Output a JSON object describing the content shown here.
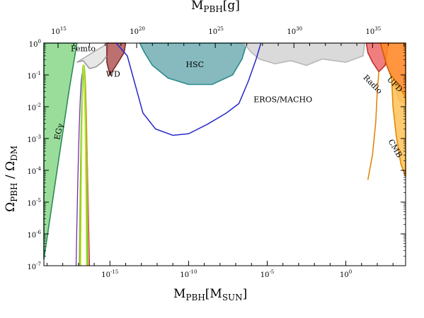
{
  "chart_data": {
    "type": "area",
    "x_top_label": {
      "main": "M",
      "sub": "PBH",
      "tail": "[g]"
    },
    "x_bottom_label": {
      "main": "M",
      "sub": "PBH",
      "tail": "[M",
      "sub2": "SUN",
      "tail2": "]"
    },
    "y_label": {
      "main": "Ω",
      "sub": "PBH",
      "mid": " / Ω",
      "sub2": "DM"
    },
    "x_bottom_range_log10": [
      -19.2,
      3.8
    ],
    "x_top_range_log10": [
      14.1,
      37.1
    ],
    "y_range_log10": [
      -7,
      0
    ],
    "x_bottom_ticks": [
      {
        "exp": -15,
        "label_base": "10",
        "label_exp": "-15"
      },
      {
        "exp": -10,
        "label_base": "10",
        "label_exp": "-10"
      },
      {
        "exp": -5,
        "label_base": "10",
        "label_exp": "-5"
      },
      {
        "exp": 0,
        "label_base": "10",
        "label_exp": "0"
      }
    ],
    "x_top_ticks": [
      {
        "exp": 15,
        "label_base": "10",
        "label_exp": "15"
      },
      {
        "exp": 20,
        "label_base": "10",
        "label_exp": "20"
      },
      {
        "exp": 25,
        "label_base": "10",
        "label_exp": "25"
      },
      {
        "exp": 30,
        "label_base": "10",
        "label_exp": "30"
      },
      {
        "exp": 35,
        "label_base": "10",
        "label_exp": "35"
      }
    ],
    "y_ticks": [
      {
        "exp": 0,
        "label_base": "10",
        "label_exp": "0"
      },
      {
        "exp": -1,
        "label_base": "10",
        "label_exp": "-1"
      },
      {
        "exp": -2,
        "label_base": "10",
        "label_exp": "-2"
      },
      {
        "exp": -3,
        "label_base": "10",
        "label_exp": "-3"
      },
      {
        "exp": -4,
        "label_base": "10",
        "label_exp": "-4"
      },
      {
        "exp": -5,
        "label_base": "10",
        "label_exp": "-5"
      },
      {
        "exp": -6,
        "label_base": "10",
        "label_exp": "-6"
      },
      {
        "exp": -7,
        "label_base": "10",
        "label_exp": "-7"
      }
    ],
    "regions": [
      {
        "name": "EGγ",
        "fill": "#8fd98f",
        "edge": "#2e8b57",
        "points": [
          [
            -19.2,
            -6.8
          ],
          [
            -19.2,
            0
          ],
          [
            -17.1,
            0
          ],
          [
            -17.6,
            -1.5
          ],
          [
            -18.3,
            -3.8
          ]
        ]
      },
      {
        "name": "Femto",
        "fill": "#e4e4e4",
        "edge": "#b0b0b0",
        "points": [
          [
            -17.1,
            -0.6
          ],
          [
            -16.7,
            -0.55
          ],
          [
            -16.3,
            -0.8
          ],
          [
            -15.9,
            -0.75
          ],
          [
            -15.5,
            -0.6
          ],
          [
            -15.2,
            -0.4
          ],
          [
            -15.1,
            0
          ]
        ]
      },
      {
        "name": "WD",
        "fill": "#b56060",
        "edge": "#7a2a2a",
        "points": [
          [
            -15.2,
            0
          ],
          [
            -14.0,
            0
          ],
          [
            -14.1,
            -0.3
          ],
          [
            -14.6,
            -0.7
          ],
          [
            -15.0,
            -1.0
          ],
          [
            -15.2,
            -0.6
          ]
        ]
      },
      {
        "name": "HSC",
        "fill": "#79b3b8",
        "edge": "#2a8a8a",
        "points": [
          [
            -13.1,
            0
          ],
          [
            -6.3,
            0
          ],
          [
            -6.6,
            -0.5
          ],
          [
            -7.2,
            -1.0
          ],
          [
            -8.5,
            -1.3
          ],
          [
            -10.0,
            -1.3
          ],
          [
            -11.3,
            -1.1
          ],
          [
            -12.3,
            -0.7
          ],
          [
            -12.8,
            -0.3
          ]
        ]
      },
      {
        "name": "EROS/MACHO",
        "fill": "#d6d6d6",
        "edge": "#b8b8b8",
        "points": [
          [
            -6.5,
            0
          ],
          [
            1.2,
            0
          ],
          [
            1.1,
            -0.4
          ],
          [
            0.0,
            -0.6
          ],
          [
            -1.5,
            -0.5
          ],
          [
            -2.5,
            -0.7
          ],
          [
            -3.5,
            -0.55
          ],
          [
            -4.5,
            -0.65
          ],
          [
            -5.5,
            -0.5
          ],
          [
            -6.0,
            -0.3
          ]
        ]
      },
      {
        "name": "Radio",
        "fill": "#f07070",
        "edge": "#c03030",
        "points": [
          [
            1.3,
            0
          ],
          [
            2.7,
            0
          ],
          [
            2.5,
            -0.7
          ],
          [
            2.1,
            -0.9
          ],
          [
            1.7,
            -0.6
          ],
          [
            1.4,
            -0.3
          ]
        ]
      },
      {
        "name": "UFD",
        "fill": "#ff8a2a",
        "edge": "#d05a00",
        "points": [
          [
            2.2,
            0
          ],
          [
            3.8,
            0
          ],
          [
            3.8,
            -1.9
          ],
          [
            3.4,
            -1.8
          ],
          [
            3.0,
            -1.2
          ],
          [
            2.6,
            -0.7
          ]
        ]
      },
      {
        "name": "CMB",
        "fill": "#ffc460",
        "edge": "#e08a00",
        "points": [
          [
            2.9,
            -1.0
          ],
          [
            3.8,
            -1.7
          ],
          [
            3.8,
            -4.2
          ],
          [
            3.5,
            -3.8
          ],
          [
            3.2,
            -2.9
          ],
          [
            3.0,
            -2.0
          ]
        ]
      }
    ],
    "curves": [
      {
        "name": "blue-constraint",
        "color": "#2828c8",
        "points": [
          [
            -14.6,
            0
          ],
          [
            -13.9,
            -0.4
          ],
          [
            -13.4,
            -1.3
          ],
          [
            -12.9,
            -2.2
          ],
          [
            -12.1,
            -2.7
          ],
          [
            -11.0,
            -2.9
          ],
          [
            -10.0,
            -2.85
          ],
          [
            -8.8,
            -2.55
          ],
          [
            -7.6,
            -2.2
          ],
          [
            -6.8,
            -1.9
          ],
          [
            -6.2,
            -1.2
          ],
          [
            -5.7,
            -0.5
          ],
          [
            -5.4,
            0
          ]
        ]
      },
      {
        "name": "radio-curve",
        "color": "#e08000",
        "points": [
          [
            1.4,
            -4.3
          ],
          [
            1.7,
            -3.5
          ],
          [
            1.9,
            -2.5
          ],
          [
            2.0,
            -1.5
          ],
          [
            2.1,
            -0.9
          ]
        ]
      },
      {
        "name": "gray-bump",
        "color": "#9a9a9a",
        "points": [
          [
            -17.1,
            -0.6
          ],
          [
            -16.7,
            -0.55
          ],
          [
            -16.3,
            -0.8
          ],
          [
            -15.9,
            -0.75
          ],
          [
            -15.5,
            -0.6
          ],
          [
            -15.2,
            -0.4
          ]
        ]
      }
    ],
    "peaks": [
      {
        "name": "peak-purple",
        "color": "#7a2aa8",
        "left": -17.15,
        "right": -16.3,
        "top": -0.9,
        "width": 1.3
      },
      {
        "name": "peak-orange",
        "color": "#ff8c1a",
        "left": -16.95,
        "right": -16.35,
        "top": -0.75,
        "width": 1.6
      },
      {
        "name": "peak-green",
        "color": "#55d64a",
        "left": -16.9,
        "right": -16.45,
        "top": -0.7,
        "width": 2.6
      },
      {
        "name": "peak-yellow",
        "color": "#f0e020",
        "left": -16.85,
        "right": -16.5,
        "top": -0.68,
        "width": 1.3
      }
    ],
    "labels": [
      {
        "text": "Femto",
        "x": -16.7,
        "y": -0.25,
        "rot": 0
      },
      {
        "text": "WD",
        "x": -14.8,
        "y": -1.05,
        "rot": 0
      },
      {
        "text": "HSC",
        "x": -9.6,
        "y": -0.75,
        "rot": 0
      },
      {
        "text": "EROS/MACHO",
        "x": -4.0,
        "y": -1.85,
        "rot": 0
      },
      {
        "text": "EGγ",
        "x": -18.1,
        "y": -2.8,
        "rot": -78
      },
      {
        "text": "Radio",
        "x": 1.6,
        "y": -1.35,
        "rot": 45
      },
      {
        "text": "UFD",
        "x": 3.0,
        "y": -1.35,
        "rot": 45
      },
      {
        "text": "CMB",
        "x": 3.0,
        "y": -3.35,
        "rot": 60
      }
    ]
  }
}
